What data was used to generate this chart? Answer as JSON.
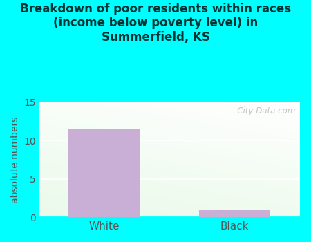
{
  "title": "Breakdown of poor residents within races\n(income below poverty level) in\nSummerfield, KS",
  "categories": [
    "White",
    "Black"
  ],
  "values": [
    11.5,
    1.0
  ],
  "bar_color": "#c9aed6",
  "ylabel": "absolute numbers",
  "ylim": [
    0,
    15
  ],
  "yticks": [
    0,
    5,
    10,
    15
  ],
  "bg_color": "#00ffff",
  "plot_bg_topleft": [
    0.88,
    0.97,
    0.88
  ],
  "plot_bg_topright": [
    0.97,
    1.0,
    0.97
  ],
  "plot_bg_bottomright": [
    0.88,
    0.97,
    0.88
  ],
  "title_fontsize": 12,
  "title_color": "#003333",
  "ylabel_color": "#555555",
  "tick_color": "#555555",
  "watermark": "   City-Data.com",
  "grid_color": "#dddddd"
}
